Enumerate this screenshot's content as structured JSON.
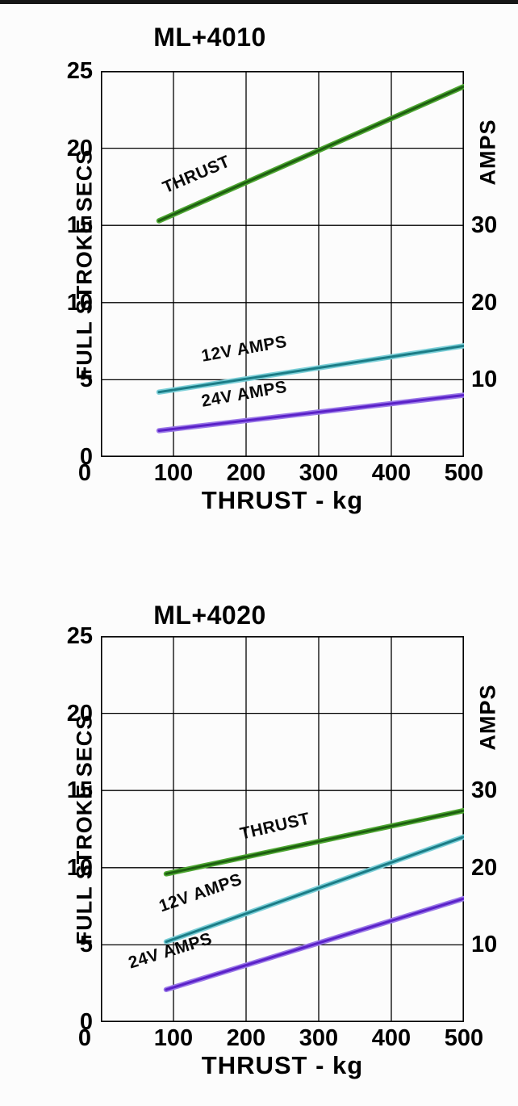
{
  "page": {
    "background": "#fcfcfc",
    "top_bar_color": "#161616"
  },
  "chart_data": [
    {
      "type": "line",
      "title": "ML+4010",
      "xlabel": "THRUST - kg",
      "ylabel_left": "FULL STROKE SECS",
      "ylabel_right": "AMPS",
      "xlim": [
        0,
        500
      ],
      "ylim_left": [
        0,
        25
      ],
      "ylim_right": [
        0,
        50
      ],
      "grid": true,
      "x_ticks": [
        0,
        100,
        200,
        300,
        400,
        500
      ],
      "y_left_ticks": [
        25,
        20,
        15,
        10,
        5,
        0
      ],
      "y_right_ticks": [
        {
          "value": 30,
          "left_axis_position": 15
        },
        {
          "value": 20,
          "left_axis_position": 10
        },
        {
          "value": 10,
          "left_axis_position": 5
        }
      ],
      "series": [
        {
          "name": "THRUST",
          "axis": "left (FULL STROKE SECS)",
          "color": "#1d5f10",
          "color_light": "#4da631",
          "points": [
            [
              80,
              15.3
            ],
            [
              500,
              24.0
            ]
          ]
        },
        {
          "name": "12V AMPS",
          "axis": "right (AMPS), values in left-axis units",
          "color": "#1b7c86",
          "color_light": "#7bcfd8",
          "points": [
            [
              80,
              4.2
            ],
            [
              500,
              7.2
            ]
          ]
        },
        {
          "name": "24V AMPS",
          "axis": "right (AMPS), values in left-axis units",
          "color": "#5a21c8",
          "color_light": "#9a78e8",
          "points": [
            [
              80,
              1.7
            ],
            [
              500,
              4.0
            ]
          ]
        }
      ]
    },
    {
      "type": "line",
      "title": "ML+4020",
      "xlabel": "THRUST - kg",
      "ylabel_left": "FULL STROKE SECS",
      "ylabel_right": "AMPS",
      "xlim": [
        0,
        500
      ],
      "ylim_left": [
        0,
        25
      ],
      "ylim_right": [
        0,
        50
      ],
      "grid": true,
      "x_ticks": [
        0,
        100,
        200,
        300,
        400,
        500
      ],
      "y_left_ticks": [
        25,
        20,
        15,
        10,
        5,
        0
      ],
      "y_right_ticks": [
        {
          "value": 30,
          "left_axis_position": 15
        },
        {
          "value": 20,
          "left_axis_position": 10
        },
        {
          "value": 10,
          "left_axis_position": 5
        }
      ],
      "series": [
        {
          "name": "THRUST",
          "axis": "left (FULL STROKE SECS)",
          "color": "#1d5f10",
          "color_light": "#4da631",
          "points": [
            [
              90,
              9.6
            ],
            [
              500,
              13.7
            ]
          ]
        },
        {
          "name": "12V AMPS",
          "axis": "right (AMPS), values in left-axis units",
          "color": "#1b7c86",
          "color_light": "#7bcfd8",
          "points": [
            [
              90,
              5.2
            ],
            [
              500,
              12.0
            ]
          ]
        },
        {
          "name": "24V AMPS",
          "axis": "right (AMPS), values in left-axis units",
          "color": "#5a21c8",
          "color_light": "#9a78e8",
          "points": [
            [
              90,
              2.1
            ],
            [
              500,
              8.0
            ]
          ]
        }
      ]
    }
  ]
}
